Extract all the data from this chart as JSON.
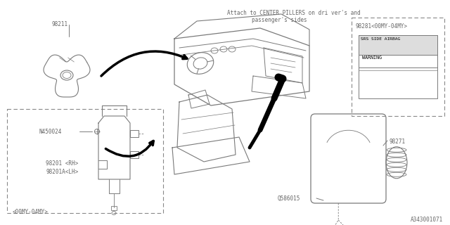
{
  "bg_color": "#ffffff",
  "line_color": "#7a7a7a",
  "dark_color": "#000000",
  "text_color": "#666666",
  "dashed_color": "#888888",
  "title_line1": "Attach to CENTER PILLERS on dri ver's and",
  "title_line2": "passenger's sides",
  "label_98211": "98211",
  "label_98281": "98281<00MY-04MY>",
  "label_98271": "98271",
  "label_N450024": "N450024",
  "label_98201_RH": "98201 <RH>",
  "label_98201A_LH": "98201A<LH>",
  "label_00MY": "<00MY-04MY>",
  "label_Q586015": "Q586015",
  "warn_text1": "SRS SIDE AIRBAG",
  "warn_text2": "WARNING",
  "footer": "A343001071"
}
